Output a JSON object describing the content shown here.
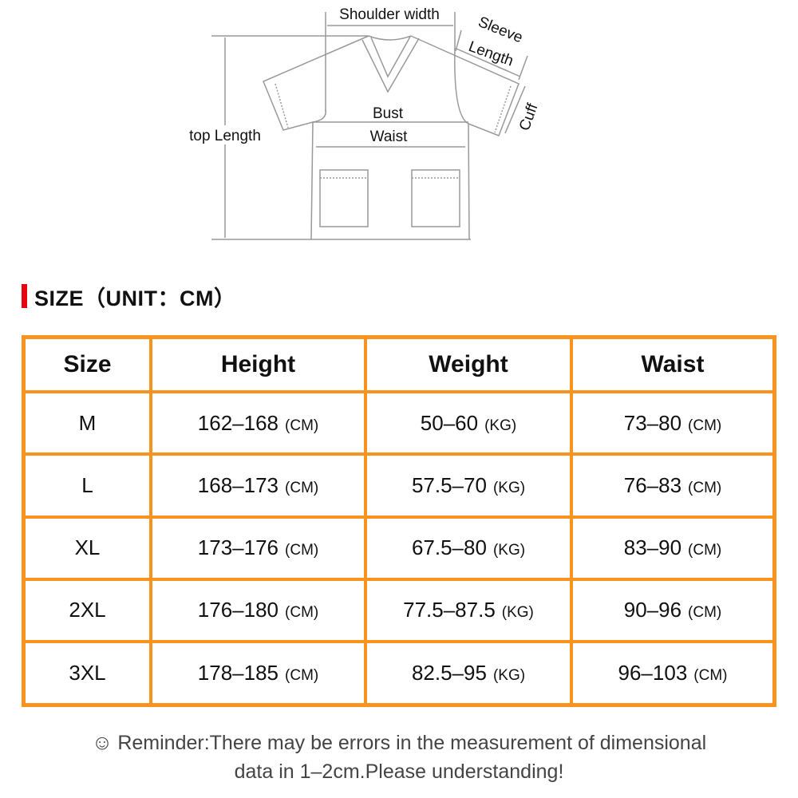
{
  "diagram": {
    "labels": {
      "shoulder_width": "Shoulder width",
      "sleeve": "Sleeve",
      "length": "Length",
      "cuff": "Cuff",
      "bust": "Bust",
      "waist": "Waist",
      "top_length": "top Length"
    }
  },
  "section_title": "SIZE（UNIT：CM）",
  "accent_color": "#e60012",
  "table_border_color": "#f7931e",
  "table": {
    "headers": [
      "Size",
      "Height",
      "Weight",
      "Waist"
    ],
    "rows": [
      {
        "size": "M",
        "height": "162–168",
        "height_unit": "(CM)",
        "weight": "50–60",
        "weight_unit": "(KG)",
        "waist": "73–80",
        "waist_unit": "(CM)"
      },
      {
        "size": "L",
        "height": "168–173",
        "height_unit": "(CM)",
        "weight": "57.5–70",
        "weight_unit": "(KG)",
        "waist": "76–83",
        "waist_unit": "(CM)"
      },
      {
        "size": "XL",
        "height": "173–176",
        "height_unit": "(CM)",
        "weight": "67.5–80",
        "weight_unit": "(KG)",
        "waist": "83–90",
        "waist_unit": "(CM)"
      },
      {
        "size": "2XL",
        "height": "176–180",
        "height_unit": "(CM)",
        "weight": "77.5–87.5",
        "weight_unit": "(KG)",
        "waist": "90–96",
        "waist_unit": "(CM)"
      },
      {
        "size": "3XL",
        "height": "178–185",
        "height_unit": "(CM)",
        "weight": "82.5–95",
        "weight_unit": "(KG)",
        "waist": "96–103",
        "waist_unit": "(CM)"
      }
    ]
  },
  "reminder": {
    "icon": "smiley-icon",
    "line1": "Reminder:There may be errors in the measurement of dimensional",
    "line2": "data in 1–2cm.Please understanding!"
  }
}
